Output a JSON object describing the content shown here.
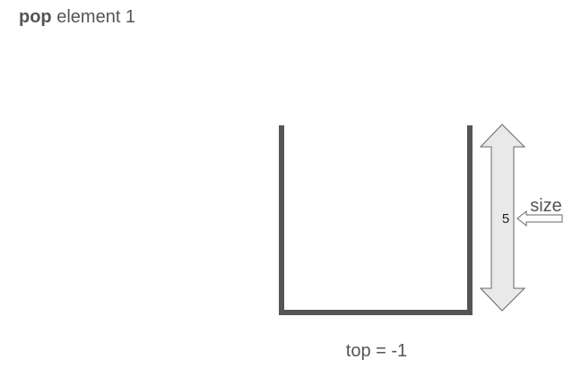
{
  "heading": {
    "operation": "pop",
    "rest": "element 1"
  },
  "stack": {
    "size_value": "5",
    "size_label": "size",
    "top_text": "top = -1",
    "container_color": "#555555",
    "arrow_fill": "#e9e9e9",
    "arrow_stroke": "#666666"
  }
}
